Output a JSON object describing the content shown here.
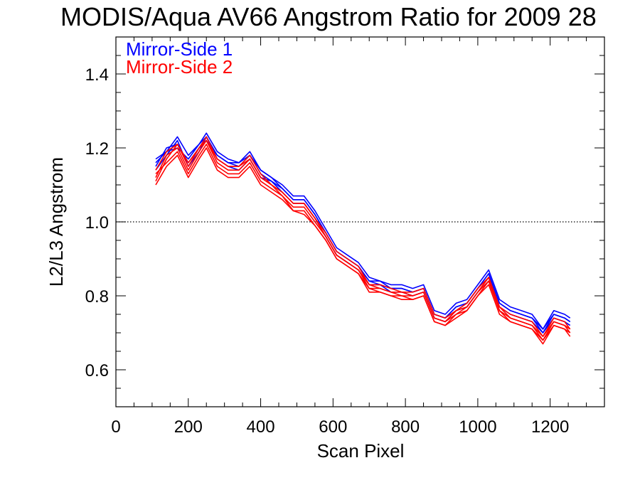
{
  "chart_data": {
    "type": "line",
    "title": "MODIS/Aqua AV66 Angstrom Ratio for 2009 28",
    "xlabel": "Scan Pixel",
    "ylabel": "L2/L3 Angstrom",
    "xlim": [
      0,
      1350
    ],
    "ylim": [
      0.5,
      1.5
    ],
    "x_ticks": [
      0,
      200,
      400,
      600,
      800,
      1000,
      1200
    ],
    "x_tick_labels": [
      "0",
      "200",
      "400",
      "600",
      "800",
      "1000",
      "1200"
    ],
    "y_ticks": [
      0.6,
      0.8,
      1.0,
      1.2,
      1.4
    ],
    "y_tick_labels": [
      "0.6",
      "0.8",
      "1.0",
      "1.2",
      "1.4"
    ],
    "reference_line": {
      "y": 1.0,
      "style": "dotted"
    },
    "legend": {
      "placement": "top-left"
    },
    "x": [
      110,
      140,
      170,
      200,
      230,
      250,
      280,
      310,
      340,
      370,
      400,
      430,
      460,
      490,
      520,
      550,
      580,
      610,
      640,
      670,
      700,
      730,
      760,
      790,
      820,
      850,
      880,
      910,
      940,
      970,
      1000,
      1030,
      1060,
      1090,
      1120,
      1150,
      1180,
      1210,
      1240,
      1255
    ],
    "series": [
      {
        "name": "Mirror-Side 1",
        "color": "#0000ff",
        "curves": [
          [
            1.17,
            1.19,
            1.23,
            1.18,
            1.21,
            1.24,
            1.19,
            1.17,
            1.16,
            1.19,
            1.14,
            1.12,
            1.1,
            1.07,
            1.07,
            1.03,
            0.98,
            0.93,
            0.91,
            0.89,
            0.85,
            0.84,
            0.83,
            0.83,
            0.82,
            0.83,
            0.76,
            0.75,
            0.78,
            0.79,
            0.83,
            0.87,
            0.79,
            0.77,
            0.76,
            0.75,
            0.71,
            0.76,
            0.75,
            0.74
          ],
          [
            1.15,
            1.2,
            1.21,
            1.16,
            1.2,
            1.22,
            1.18,
            1.16,
            1.15,
            1.18,
            1.13,
            1.11,
            1.09,
            1.06,
            1.06,
            1.02,
            0.97,
            0.92,
            0.9,
            0.88,
            0.84,
            0.83,
            0.82,
            0.82,
            0.81,
            0.82,
            0.75,
            0.74,
            0.77,
            0.78,
            0.82,
            0.86,
            0.78,
            0.76,
            0.75,
            0.74,
            0.7,
            0.75,
            0.74,
            0.73
          ],
          [
            1.14,
            1.18,
            1.22,
            1.15,
            1.19,
            1.23,
            1.17,
            1.15,
            1.14,
            1.17,
            1.12,
            1.11,
            1.08,
            1.05,
            1.05,
            1.01,
            0.96,
            0.91,
            0.89,
            0.87,
            0.83,
            0.83,
            0.81,
            0.81,
            0.8,
            0.81,
            0.74,
            0.73,
            0.76,
            0.77,
            0.81,
            0.85,
            0.77,
            0.75,
            0.74,
            0.73,
            0.7,
            0.74,
            0.73,
            0.72
          ],
          [
            1.16,
            1.19,
            1.2,
            1.17,
            1.21,
            1.23,
            1.18,
            1.16,
            1.16,
            1.18,
            1.14,
            1.12,
            1.09,
            1.06,
            1.06,
            1.02,
            0.97,
            0.92,
            0.9,
            0.88,
            0.84,
            0.84,
            0.82,
            0.82,
            0.81,
            0.82,
            0.75,
            0.74,
            0.77,
            0.78,
            0.82,
            0.86,
            0.78,
            0.76,
            0.75,
            0.74,
            0.71,
            0.75,
            0.74,
            0.73
          ]
        ]
      },
      {
        "name": "Mirror-Side 2",
        "color": "#ff0000",
        "curves": [
          [
            1.11,
            1.17,
            1.21,
            1.15,
            1.2,
            1.23,
            1.17,
            1.15,
            1.15,
            1.18,
            1.13,
            1.1,
            1.08,
            1.05,
            1.05,
            1.01,
            0.97,
            0.92,
            0.9,
            0.88,
            0.83,
            0.83,
            0.82,
            0.81,
            0.81,
            0.82,
            0.75,
            0.74,
            0.76,
            0.78,
            0.82,
            0.85,
            0.77,
            0.75,
            0.74,
            0.73,
            0.69,
            0.74,
            0.73,
            0.71
          ],
          [
            1.12,
            1.18,
            1.2,
            1.14,
            1.19,
            1.22,
            1.16,
            1.14,
            1.14,
            1.17,
            1.12,
            1.1,
            1.07,
            1.04,
            1.04,
            1.0,
            0.96,
            0.91,
            0.89,
            0.87,
            0.82,
            0.82,
            0.81,
            0.8,
            0.8,
            0.81,
            0.74,
            0.73,
            0.75,
            0.77,
            0.81,
            0.84,
            0.76,
            0.74,
            0.73,
            0.72,
            0.68,
            0.73,
            0.72,
            0.7
          ],
          [
            1.13,
            1.16,
            1.19,
            1.13,
            1.18,
            1.21,
            1.15,
            1.13,
            1.13,
            1.16,
            1.11,
            1.09,
            1.07,
            1.03,
            1.03,
            0.99,
            0.95,
            0.9,
            0.88,
            0.86,
            0.82,
            0.81,
            0.8,
            0.8,
            0.79,
            0.8,
            0.73,
            0.72,
            0.75,
            0.76,
            0.8,
            0.84,
            0.76,
            0.73,
            0.72,
            0.71,
            0.68,
            0.72,
            0.71,
            0.7
          ],
          [
            1.14,
            1.19,
            1.21,
            1.16,
            1.2,
            1.22,
            1.17,
            1.15,
            1.15,
            1.17,
            1.12,
            1.1,
            1.08,
            1.05,
            1.05,
            1.01,
            0.96,
            0.91,
            0.89,
            0.87,
            0.83,
            0.82,
            0.81,
            0.81,
            0.8,
            0.81,
            0.74,
            0.73,
            0.76,
            0.77,
            0.81,
            0.85,
            0.77,
            0.74,
            0.73,
            0.72,
            0.69,
            0.73,
            0.72,
            0.71
          ],
          [
            1.1,
            1.15,
            1.18,
            1.12,
            1.17,
            1.2,
            1.14,
            1.12,
            1.12,
            1.15,
            1.1,
            1.08,
            1.06,
            1.03,
            1.02,
            0.99,
            0.95,
            0.9,
            0.88,
            0.86,
            0.81,
            0.81,
            0.8,
            0.79,
            0.79,
            0.8,
            0.73,
            0.72,
            0.74,
            0.76,
            0.8,
            0.83,
            0.75,
            0.73,
            0.72,
            0.71,
            0.67,
            0.72,
            0.71,
            0.69
          ]
        ]
      }
    ]
  }
}
